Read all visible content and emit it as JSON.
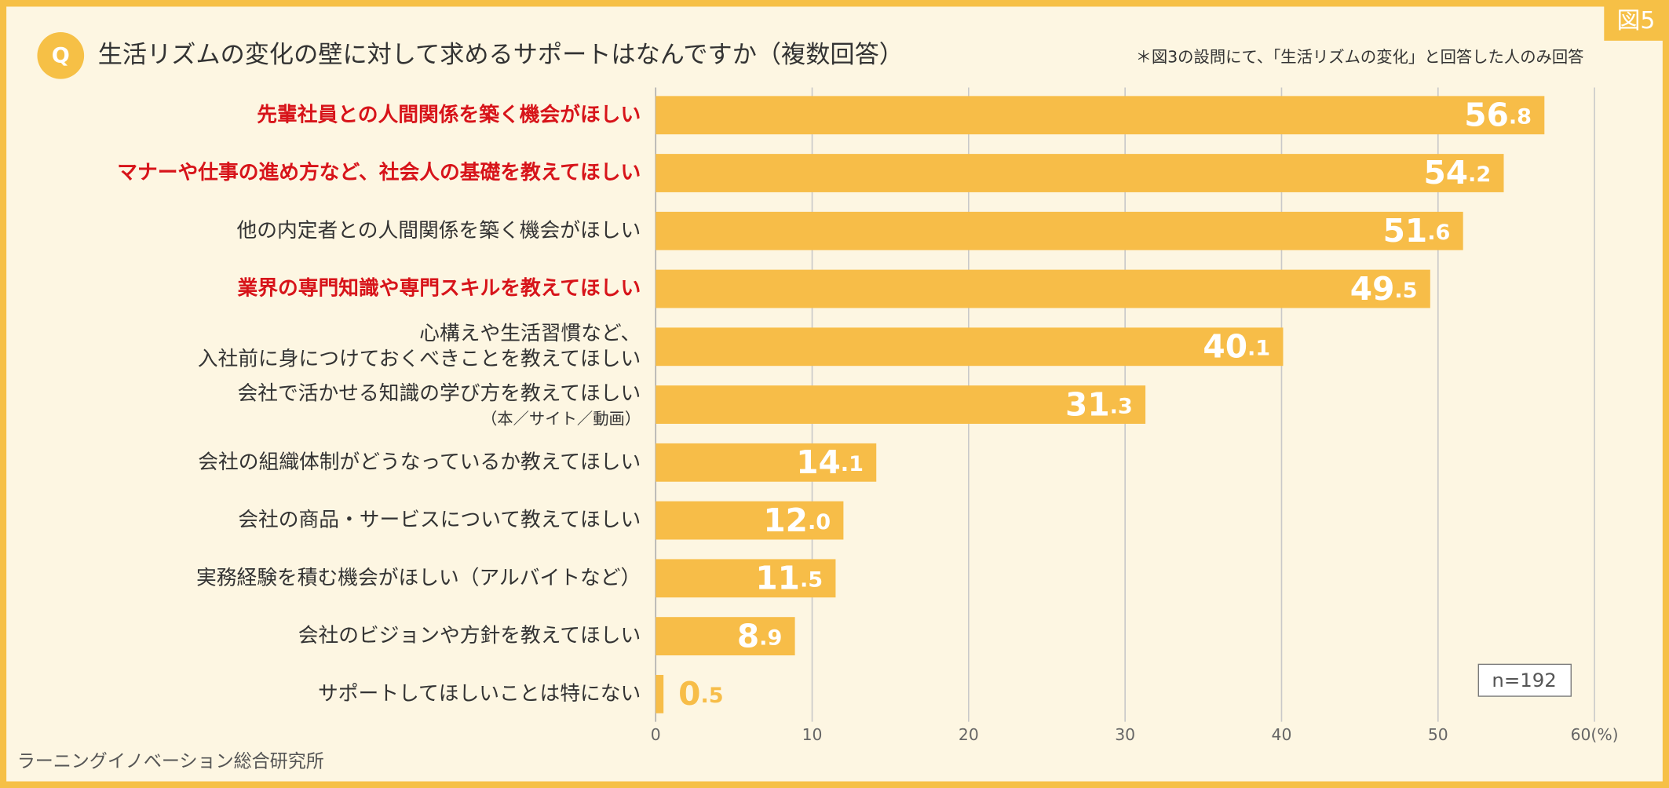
{
  "badge": "図5",
  "question_mark": "Q",
  "note": "＊図3の設問にて、「生活リズムの変化」と回答した人のみ回答",
  "sample_size": "n=192",
  "source": "ラーニングイノベーション総合研究所",
  "chart_data": {
    "type": "bar",
    "orientation": "horizontal",
    "title": "生活リズムの変化の壁に対して求めるサポートはなんですか（複数回答）",
    "categories": [
      [
        "先輩社員との人間関係を築く機会がほしい"
      ],
      [
        "マナーや仕事の進め方など、社会人の基礎を教えてほしい"
      ],
      [
        "他の内定者との人間関係を築く機会がほしい"
      ],
      [
        "業界の専門知識や専門スキルを教えてほしい"
      ],
      [
        "心構えや生活習慣など、",
        "入社前に身につけておくべきことを教えてほしい"
      ],
      [
        "会社で活かせる知識の学び方を教えてほしい",
        "（本／サイト／動画）"
      ],
      [
        "会社の組織体制がどうなっているか教えてほしい"
      ],
      [
        "会社の商品・サービスについて教えてほしい"
      ],
      [
        "実務経験を積む機会がほしい（アルバイトなど）"
      ],
      [
        "会社のビジョンや方針を教えてほしい"
      ],
      [
        "サポートしてほしいことは特にない"
      ]
    ],
    "label_colors": [
      "#d7141a",
      "#d7141a",
      "#333333",
      "#d7141a",
      "#333333",
      "#333333",
      "#333333",
      "#333333",
      "#333333",
      "#333333",
      "#333333"
    ],
    "values": [
      56.8,
      54.2,
      51.6,
      49.5,
      40.1,
      31.3,
      14.1,
      12.0,
      11.5,
      8.9,
      0.5
    ],
    "value_labels": [
      "56.8",
      "54.2",
      "51.6",
      "49.5",
      "40.1",
      "31.3",
      "14.1",
      "12.0",
      "11.5",
      "8.9",
      "0.5"
    ],
    "color": "#f7bd48",
    "xlim": [
      0,
      60
    ],
    "xticks": [
      0,
      10,
      20,
      30,
      40,
      50,
      {
        "value": 60,
        "label": "60(%)"
      }
    ],
    "grid": true
  }
}
